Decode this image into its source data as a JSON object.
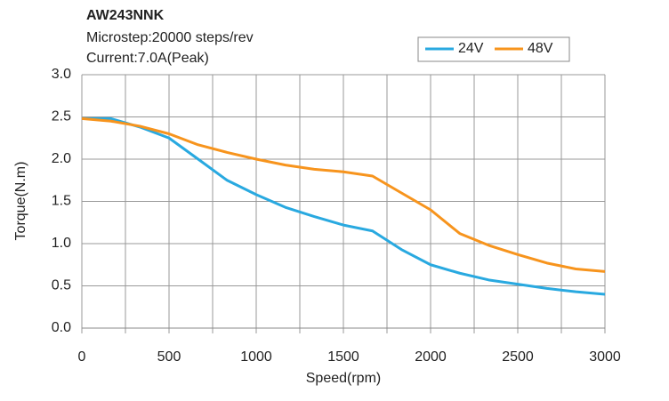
{
  "chart_data": {
    "type": "line",
    "title": "AW243NNK",
    "subtitle": [
      "Microstep:20000 steps/rev",
      "Current:7.0A(Peak)"
    ],
    "x_label": "Speed(rpm)",
    "y_label": "Torque(N.m)",
    "x": [
      0,
      167,
      333,
      500,
      667,
      833,
      1000,
      1167,
      1333,
      1500,
      1667,
      1833,
      2000,
      2167,
      2333,
      2500,
      2667,
      2833,
      3000
    ],
    "series": [
      {
        "name": "24V",
        "color": "#29a9e0",
        "values": [
          2.48,
          2.48,
          2.38,
          2.25,
          2.0,
          1.75,
          1.58,
          1.43,
          1.32,
          1.22,
          1.15,
          0.93,
          0.75,
          0.65,
          0.57,
          0.52,
          0.47,
          0.43,
          0.4
        ]
      },
      {
        "name": "48V",
        "color": "#f7941d",
        "values": [
          2.48,
          2.45,
          2.39,
          2.3,
          2.17,
          2.08,
          2.0,
          1.93,
          1.88,
          1.85,
          1.8,
          1.6,
          1.4,
          1.12,
          0.98,
          0.87,
          0.77,
          0.7,
          0.67
        ]
      }
    ],
    "xlim": [
      0,
      3000
    ],
    "xticks": [
      0,
      500,
      1000,
      1500,
      2000,
      2500,
      3000
    ],
    "xminorticks": [
      250,
      750,
      1250,
      1750,
      2250,
      2750
    ],
    "ylim": [
      0,
      3
    ],
    "yticks": [
      {
        "value": 0,
        "label": "0.0"
      },
      0.5,
      {
        "value": 1,
        "label": "1.0"
      },
      1.5,
      {
        "value": 2,
        "label": "2.0"
      },
      2.5,
      {
        "value": 3,
        "label": "3.0"
      }
    ],
    "grid": true,
    "legend": "top-right"
  }
}
